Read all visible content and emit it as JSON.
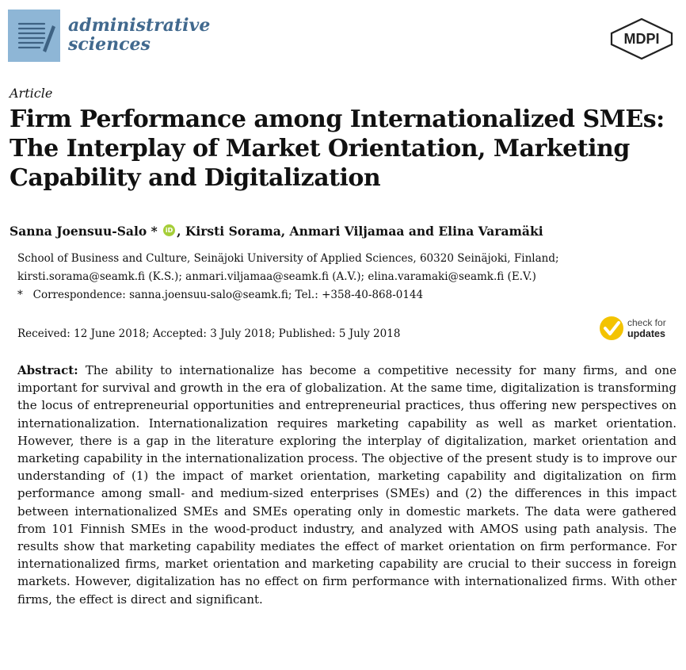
{
  "header": {
    "journal_line1": "administrative",
    "journal_line2": "sciences",
    "publisher": "MDPI",
    "journal_logo_icon": "journal-document-icon",
    "check_updates_icon": "check-for-updates-icon",
    "check_line1": "check for",
    "check_line2": "updates",
    "colors": {
      "journal_blue": "#41698e",
      "logo_bg": "#8eb6d6",
      "orcid_green": "#a6ce39",
      "updates_yellow": "#f3c300"
    }
  },
  "article": {
    "type": "Article",
    "title_lines": [
      "Firm Performance among Internationalized SMEs:",
      "The Interplay of Market Orientation, Marketing",
      "Capability and Digitalization"
    ],
    "authors_part1": "Sanna Joensuu-Salo *",
    "orcid_label": "iD",
    "authors_part2": ", Kirsti Sorama, Anmari Viljamaa and Elina Varamäki",
    "affiliation_line1": "School of Business and Culture, Seinäjoki University of Applied Sciences, 60320 Seinäjoki, Finland;",
    "affiliation_line2": "kirsti.sorama@seamk.fi (K.S.); anmari.viljamaa@seamk.fi (A.V.); elina.varamaki@seamk.fi (E.V.)",
    "correspondence_marker": "*",
    "correspondence_text": "Correspondence: sanna.joensuu-salo@seamk.fi; Tel.: +358-40-868-0144",
    "dates": "Received: 12 June 2018; Accepted: 3 July 2018; Published: 5 July 2018",
    "abstract_label": "Abstract:",
    "abstract_text": "The ability to internationalize has become a competitive necessity for many firms, and one important for survival and growth in the era of globalization. At the same time, digitalization is transforming the locus of entrepreneurial opportunities and entrepreneurial practices, thus offering new perspectives on internationalization. Internationalization requires marketing capability as well as market orientation. However, there is a gap in the literature exploring the interplay of digitalization, market orientation and marketing capability in the internationalization process. The objective of the present study is to improve our understanding of (1) the impact of market orientation, marketing capability and digitalization on firm performance among small- and medium-sized enterprises (SMEs) and (2) the differences in this impact between internationalized SMEs and SMEs operating only in domestic markets. The data were gathered from 101 Finnish SMEs in the wood-product industry, and analyzed with AMOS using path analysis. The results show that marketing capability mediates the effect of market orientation on firm performance. For internationalized firms, market orientation and marketing capability are crucial to their success in foreign markets. However, digitalization has no effect on firm performance with internationalized firms. With other firms, the effect is direct and significant."
  }
}
